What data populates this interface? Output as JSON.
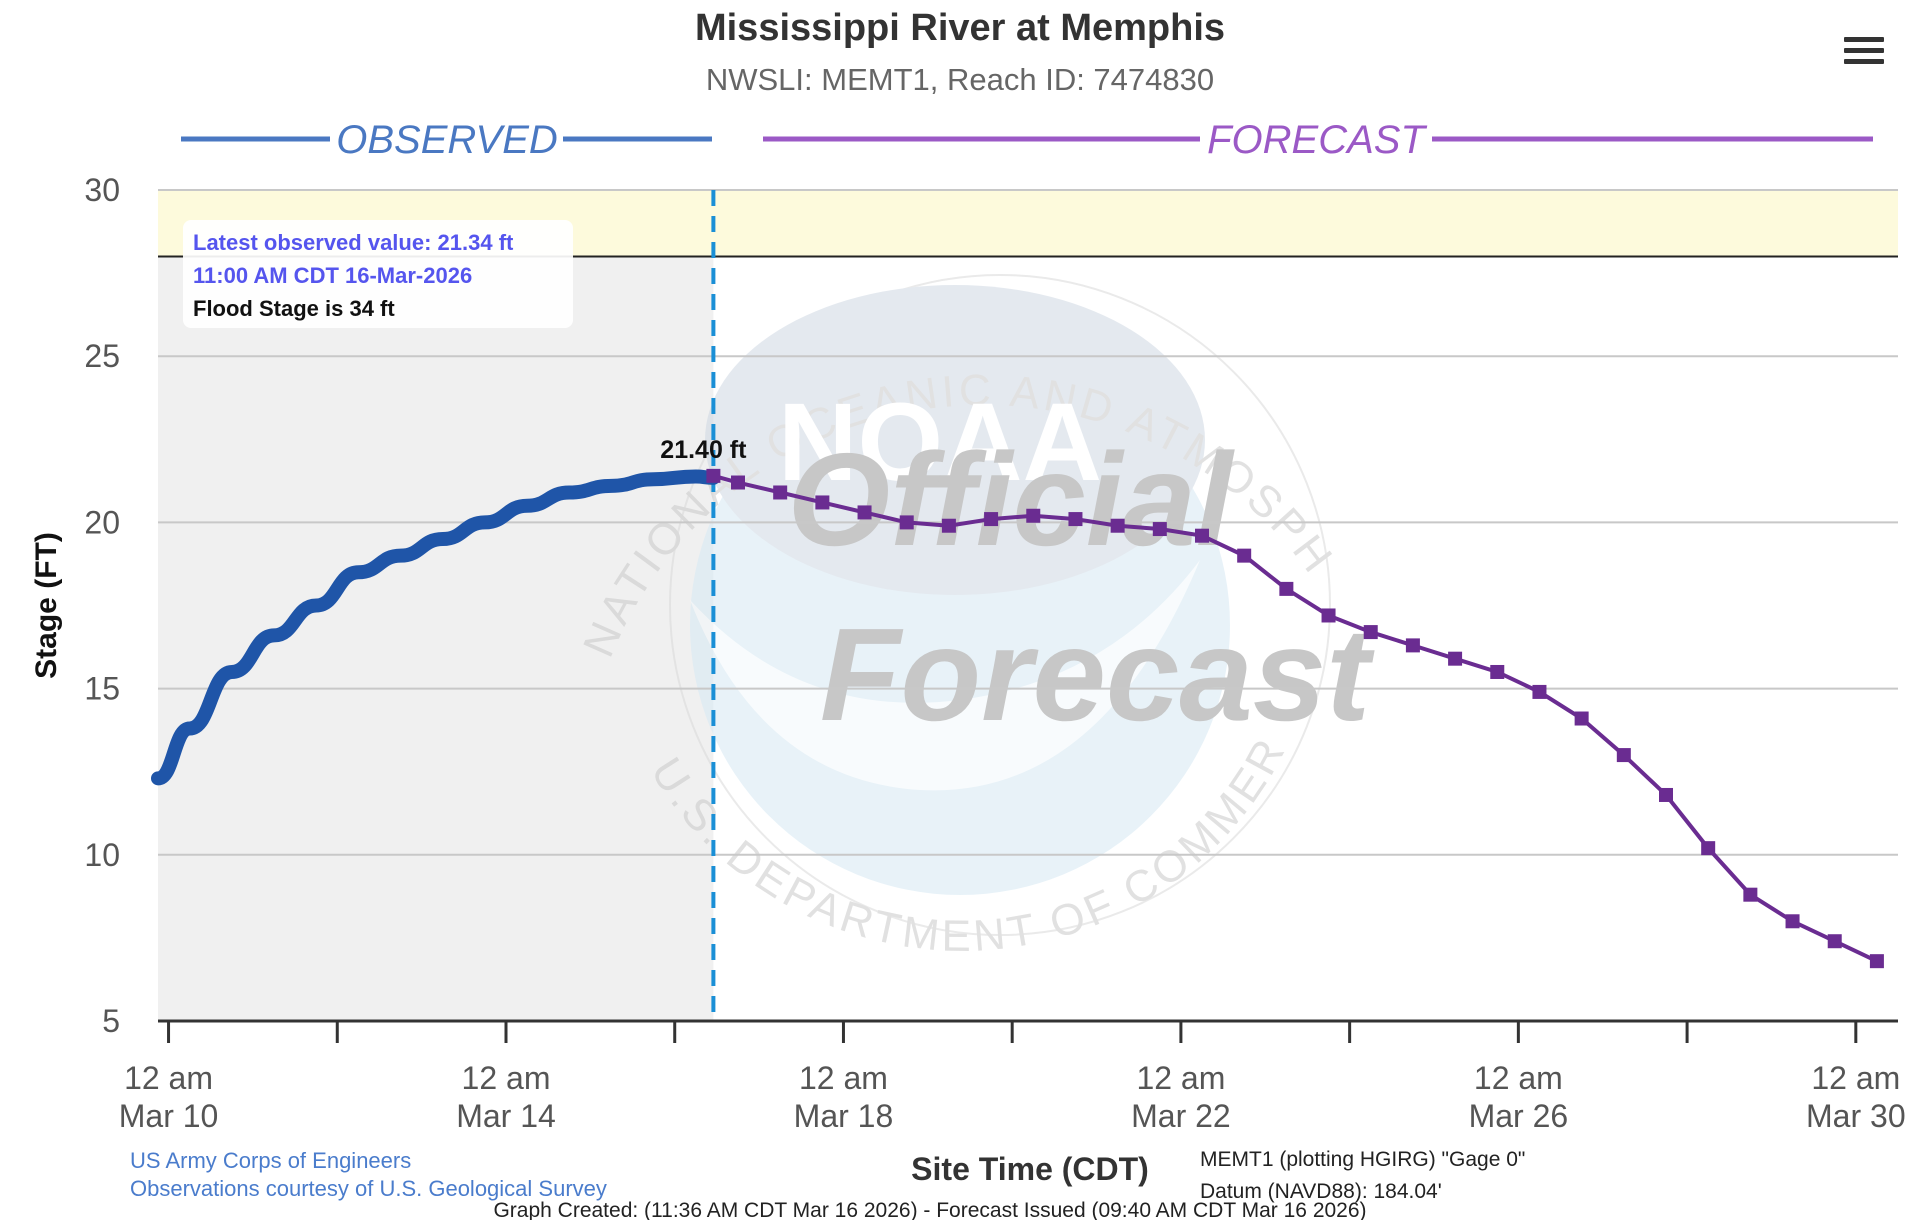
{
  "title": "Mississippi River at Memphis",
  "subtitle": "NWSLI: MEMT1, Reach ID: 7474830",
  "menu_icon": "hamburger-menu-icon",
  "segments": {
    "observed_label": "OBSERVED",
    "forecast_label": "FORECAST",
    "observed_color": "#4a78c2",
    "forecast_color": "#9b59c6"
  },
  "tooltip": {
    "line1": "Latest observed value: 21.34 ft",
    "line2": "11:00 AM CDT 16-Mar-2026",
    "line3": "Flood Stage is 34 ft"
  },
  "watermark": {
    "ring_top": "NATIONAL OCEANIC AND ATMOSPHERIC ADMINISTRATION",
    "ring_bottom": "U.S. DEPARTMENT OF COMMERCE",
    "logo": "NOAA",
    "line1": "Official",
    "line2": "Forecast"
  },
  "footer": {
    "credit1": "US Army Corps of Engineers",
    "credit2": "Observations courtesy of U.S. Geological Survey",
    "datum1": "MEMT1 (plotting HGIRG) \"Gage 0\"",
    "datum2": "Datum (NAVD88): 184.04'",
    "created": "Graph Created: (11:36 AM CDT Mar 16 2026) - Forecast Issued (09:40 AM CDT Mar 16 2026)"
  },
  "chart_data": {
    "type": "line",
    "title": "Mississippi River at Memphis",
    "subtitle": "NWSLI: MEMT1, Reach ID: 7474830",
    "xlabel": "Site Time (CDT)",
    "ylabel": "Stage (FT)",
    "ylim": [
      5,
      30
    ],
    "yticks": [
      5,
      10,
      15,
      20,
      25,
      30
    ],
    "xlim": [
      "2026-03-09 21:00",
      "2026-03-30 12:00"
    ],
    "xticks": [
      {
        "line1": "12 am",
        "line2": "Mar 10"
      },
      {
        "line1": "12 am",
        "line2": "Mar 14"
      },
      {
        "line1": "12 am",
        "line2": "Mar 18"
      },
      {
        "line1": "12 am",
        "line2": "Mar 22"
      },
      {
        "line1": "12 am",
        "line2": "Mar 26"
      },
      {
        "line1": "12 am",
        "line2": "Mar 30"
      }
    ],
    "grid": true,
    "flood_stage_ft": 34,
    "action_band_ft": [
      28,
      30
    ],
    "action_line_ft": 28,
    "peak_label": "21.40 ft",
    "now": "2026-03-16 11:00",
    "series": [
      {
        "name": "Observed",
        "color": "#1f55a8",
        "x": [
          "2026-03-09 21:00",
          "2026-03-10 06:00",
          "2026-03-10 18:00",
          "2026-03-11 06:00",
          "2026-03-11 18:00",
          "2026-03-12 06:00",
          "2026-03-12 18:00",
          "2026-03-13 06:00",
          "2026-03-13 18:00",
          "2026-03-14 06:00",
          "2026-03-14 18:00",
          "2026-03-15 06:00",
          "2026-03-15 18:00",
          "2026-03-16 06:00",
          "2026-03-16 11:00"
        ],
        "y": [
          12.3,
          13.8,
          15.5,
          16.6,
          17.5,
          18.5,
          19.0,
          19.5,
          20.0,
          20.5,
          20.9,
          21.1,
          21.3,
          21.38,
          21.34
        ]
      },
      {
        "name": "Forecast",
        "color": "#6a2c91",
        "x": [
          "2026-03-16 11:00",
          "2026-03-16 18:00",
          "2026-03-17 06:00",
          "2026-03-17 18:00",
          "2026-03-18 06:00",
          "2026-03-18 18:00",
          "2026-03-19 06:00",
          "2026-03-19 18:00",
          "2026-03-20 06:00",
          "2026-03-20 18:00",
          "2026-03-21 06:00",
          "2026-03-21 18:00",
          "2026-03-22 06:00",
          "2026-03-22 18:00",
          "2026-03-23 06:00",
          "2026-03-23 18:00",
          "2026-03-24 06:00",
          "2026-03-24 18:00",
          "2026-03-25 06:00",
          "2026-03-25 18:00",
          "2026-03-26 06:00",
          "2026-03-26 18:00",
          "2026-03-27 06:00",
          "2026-03-27 18:00",
          "2026-03-28 06:00",
          "2026-03-28 18:00",
          "2026-03-29 06:00",
          "2026-03-29 18:00",
          "2026-03-30 06:00"
        ],
        "y": [
          21.4,
          21.2,
          20.9,
          20.6,
          20.3,
          20.0,
          19.9,
          20.1,
          20.2,
          20.1,
          19.9,
          19.8,
          19.6,
          19.0,
          18.0,
          17.2,
          16.7,
          16.3,
          15.9,
          15.5,
          14.9,
          14.1,
          13.0,
          11.8,
          10.2,
          8.8,
          8.0,
          7.4,
          6.8
        ]
      }
    ]
  }
}
